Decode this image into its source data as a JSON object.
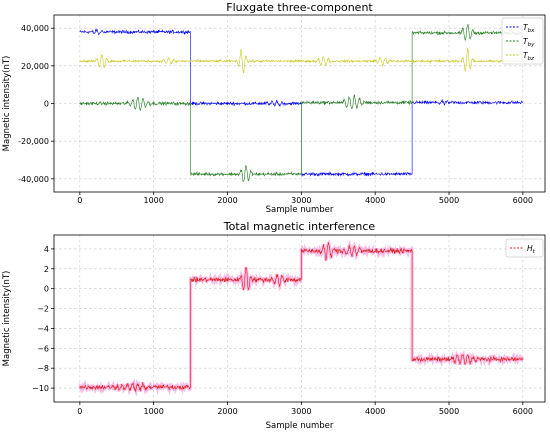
{
  "chart_data": [
    {
      "type": "line",
      "title": "Fluxgate three-component",
      "xlabel": "Sample number",
      "ylabel": "Magnetic intensity(nT)",
      "xlim": [
        -350,
        6300
      ],
      "ylim": [
        -47000,
        47000
      ],
      "xticks": [
        0,
        1000,
        2000,
        3000,
        4000,
        5000,
        6000
      ],
      "xtick_labels": [
        "0",
        "1000",
        "2000",
        "3000",
        "4000",
        "5000",
        "6000"
      ],
      "yticks": [
        -40000,
        -20000,
        0,
        20000,
        40000
      ],
      "ytick_labels": [
        "-40,000",
        "-20,000",
        "0",
        "20,000",
        "40,000"
      ],
      "grid": true,
      "legend": "top-right",
      "series": [
        {
          "name": "T_bx",
          "legend_main": "T",
          "legend_sub": "bx",
          "color": "#0000ff",
          "noise": 900,
          "segments": [
            {
              "start": 0,
              "end": 1500,
              "level": 38000
            },
            {
              "start": 1500,
              "end": 3000,
              "level": 0
            },
            {
              "start": 3000,
              "end": 4500,
              "level": -37500
            },
            {
              "start": 4500,
              "end": 6000,
              "level": 500
            }
          ],
          "bursts": [
            {
              "center": 2650,
              "width": 350,
              "amplitude": 1500
            },
            {
              "center": 4950,
              "width": 300,
              "amplitude": 900
            },
            {
              "center": 250,
              "width": 250,
              "amplitude": 1200
            }
          ]
        },
        {
          "name": "T_by",
          "legend_main": "T",
          "legend_sub": "by",
          "color": "#1e7a1e",
          "noise": 900,
          "segments": [
            {
              "start": 0,
              "end": 1500,
              "level": 0
            },
            {
              "start": 1500,
              "end": 3000,
              "level": -37500
            },
            {
              "start": 3000,
              "end": 4500,
              "level": 500
            },
            {
              "start": 4500,
              "end": 6000,
              "level": 37500
            }
          ],
          "bursts": [
            {
              "center": 800,
              "width": 400,
              "amplitude": 3500
            },
            {
              "center": 2250,
              "width": 250,
              "amplitude": 4500
            },
            {
              "center": 3700,
              "width": 400,
              "amplitude": 3500
            },
            {
              "center": 5250,
              "width": 250,
              "amplitude": 4500
            }
          ]
        },
        {
          "name": "T_bz",
          "legend_main": "T",
          "legend_sub": "bz",
          "color": "#c8c81e",
          "noise": 600,
          "segments": [
            {
              "start": 0,
              "end": 6000,
              "level": 22500
            }
          ],
          "bursts": [
            {
              "center": 300,
              "width": 250,
              "amplitude": 3500
            },
            {
              "center": 2200,
              "width": 200,
              "amplitude": 6500
            },
            {
              "center": 1200,
              "width": 300,
              "amplitude": 1500
            },
            {
              "center": 3300,
              "width": 300,
              "amplitude": 2500
            },
            {
              "center": 4100,
              "width": 300,
              "amplitude": 2000
            },
            {
              "center": 5250,
              "width": 200,
              "amplitude": 6500
            }
          ]
        }
      ]
    },
    {
      "type": "line",
      "title": "Total magnetic interference",
      "xlabel": "Sample number",
      "ylabel": "Magnetic intensity(nT)",
      "xlim": [
        -350,
        6300
      ],
      "ylim": [
        -11.4,
        5.4
      ],
      "xticks": [
        0,
        1000,
        2000,
        3000,
        4000,
        5000,
        6000
      ],
      "xtick_labels": [
        "0",
        "1000",
        "2000",
        "3000",
        "4000",
        "5000",
        "6000"
      ],
      "yticks": [
        -10,
        -8,
        -6,
        -4,
        -2,
        0,
        2,
        4
      ],
      "ytick_labels": [
        "−10",
        "−8",
        "−6",
        "−4",
        "−2",
        "0",
        "2",
        "4"
      ],
      "grid": true,
      "legend": "top-right",
      "series": [
        {
          "name": "H_t",
          "legend_main": "H",
          "legend_sub": "t",
          "color": "#e02020",
          "halo_color": "#f5a8e0",
          "noise": 0.25,
          "segments": [
            {
              "start": 0,
              "end": 1500,
              "level": -9.9
            },
            {
              "start": 1500,
              "end": 3000,
              "level": 0.9
            },
            {
              "start": 3000,
              "end": 4500,
              "level": 3.8
            },
            {
              "start": 4500,
              "end": 6000,
              "level": -7.1
            }
          ],
          "bursts": [
            {
              "center": 700,
              "width": 700,
              "amplitude": 0.35
            },
            {
              "center": 2250,
              "width": 220,
              "amplitude": 1.3
            },
            {
              "center": 2700,
              "width": 300,
              "amplitude": 0.5
            },
            {
              "center": 3350,
              "width": 250,
              "amplitude": 0.9
            },
            {
              "center": 3700,
              "width": 400,
              "amplitude": 0.5
            },
            {
              "center": 5200,
              "width": 600,
              "amplitude": 0.45
            }
          ]
        }
      ]
    }
  ]
}
